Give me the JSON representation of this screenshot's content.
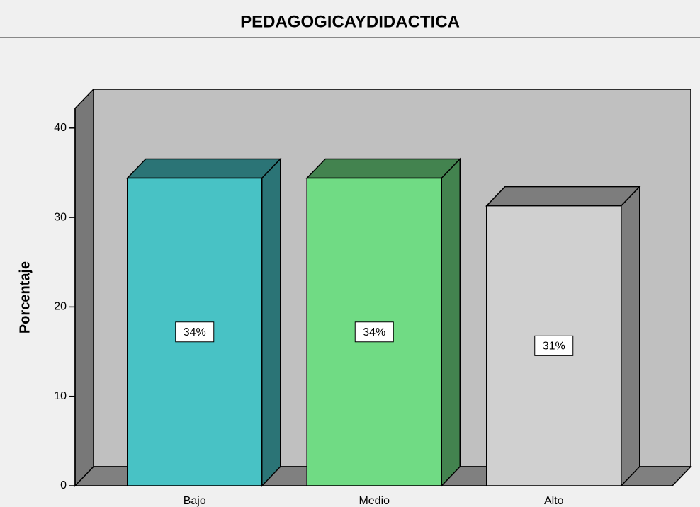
{
  "chart_data": {
    "type": "bar3d",
    "title": "PEDAGOGICAYDIDACTICA",
    "y_label": "Porcentaje",
    "categories": [
      "Bajo",
      "Medio",
      "Alto"
    ],
    "values": [
      34.4,
      34.4,
      31.3
    ],
    "value_labels": [
      "34%",
      "34%",
      "31%"
    ],
    "colors": [
      "#48c2c5",
      "#70db84",
      "#d0d0d0"
    ],
    "ylim": [
      0,
      42.2
    ],
    "yticks": [
      0,
      10,
      20,
      30,
      40
    ]
  }
}
